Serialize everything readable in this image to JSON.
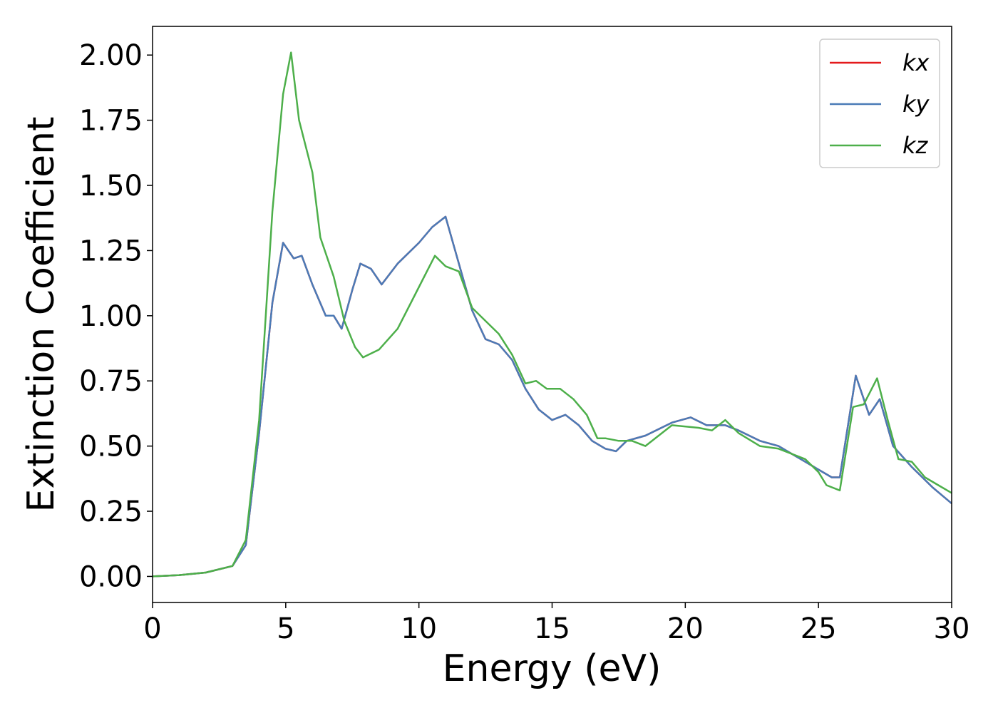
{
  "chart_data": {
    "type": "line",
    "xlabel": "Energy (eV)",
    "ylabel": "Extinction Coefficient",
    "xlim": [
      0,
      30
    ],
    "ylim": [
      -0.1,
      2.11
    ],
    "xticks": [
      0,
      5,
      10,
      15,
      20,
      25,
      30
    ],
    "yticks": [
      {
        "value": 0,
        "label": "0.00"
      },
      {
        "value": 0.25,
        "label": "0.25"
      },
      {
        "value": 0.5,
        "label": "0.50"
      },
      {
        "value": 0.75,
        "label": "0.75"
      },
      {
        "value": 1,
        "label": "1.00"
      },
      {
        "value": 1.25,
        "label": "1.25"
      },
      {
        "value": 1.5,
        "label": "1.50"
      },
      {
        "value": 1.75,
        "label": "1.75"
      },
      {
        "value": 2,
        "label": "2.00"
      }
    ],
    "legend": "upper right",
    "series": [
      {
        "name": "kx",
        "color": "#e41a1c",
        "x": [
          0,
          1,
          2,
          3,
          3.5,
          4,
          4.5,
          4.9,
          5.3,
          5.6,
          6,
          6.5,
          6.8,
          7.1,
          7.5,
          7.8,
          8.2,
          8.6,
          9.2,
          10,
          10.5,
          11,
          11.5,
          12,
          12.5,
          13,
          13.5,
          14,
          14.5,
          15,
          15.5,
          16,
          16.5,
          17,
          17.4,
          17.8,
          18.5,
          19.5,
          20.2,
          20.8,
          21.5,
          22,
          22.8,
          23.5,
          24.5,
          25.5,
          25.8,
          26.4,
          26.9,
          27.3,
          27.8,
          28.5,
          29.3,
          30
        ],
        "values": [
          0,
          0.005,
          0.015,
          0.04,
          0.12,
          0.55,
          1.05,
          1.28,
          1.22,
          1.23,
          1.12,
          1.0,
          1.0,
          0.95,
          1.1,
          1.2,
          1.18,
          1.12,
          1.2,
          1.28,
          1.34,
          1.38,
          1.2,
          1.02,
          0.91,
          0.89,
          0.83,
          0.72,
          0.64,
          0.6,
          0.62,
          0.58,
          0.52,
          0.49,
          0.48,
          0.52,
          0.54,
          0.59,
          0.61,
          0.58,
          0.58,
          0.56,
          0.52,
          0.5,
          0.44,
          0.38,
          0.38,
          0.77,
          0.62,
          0.68,
          0.5,
          0.42,
          0.34,
          0.28
        ]
      },
      {
        "name": "ky",
        "color": "#4a7bb7",
        "x": [
          0,
          1,
          2,
          3,
          3.5,
          4,
          4.5,
          4.9,
          5.3,
          5.6,
          6,
          6.5,
          6.8,
          7.1,
          7.5,
          7.8,
          8.2,
          8.6,
          9.2,
          10,
          10.5,
          11,
          11.5,
          12,
          12.5,
          13,
          13.5,
          14,
          14.5,
          15,
          15.5,
          16,
          16.5,
          17,
          17.4,
          17.8,
          18.5,
          19.5,
          20.2,
          20.8,
          21.5,
          22,
          22.8,
          23.5,
          24.5,
          25.5,
          25.8,
          26.4,
          26.9,
          27.3,
          27.8,
          28.5,
          29.3,
          30
        ],
        "values": [
          0,
          0.005,
          0.015,
          0.04,
          0.12,
          0.55,
          1.05,
          1.28,
          1.22,
          1.23,
          1.12,
          1.0,
          1.0,
          0.95,
          1.1,
          1.2,
          1.18,
          1.12,
          1.2,
          1.28,
          1.34,
          1.38,
          1.2,
          1.02,
          0.91,
          0.89,
          0.83,
          0.72,
          0.64,
          0.6,
          0.62,
          0.58,
          0.52,
          0.49,
          0.48,
          0.52,
          0.54,
          0.59,
          0.61,
          0.58,
          0.58,
          0.56,
          0.52,
          0.5,
          0.44,
          0.38,
          0.38,
          0.77,
          0.62,
          0.68,
          0.5,
          0.42,
          0.34,
          0.28
        ]
      },
      {
        "name": "kz",
        "color": "#4daf4a",
        "x": [
          0,
          1,
          2,
          3,
          3.5,
          4,
          4.5,
          4.9,
          5.2,
          5.5,
          6,
          6.3,
          6.8,
          7.2,
          7.6,
          7.9,
          8.5,
          9.2,
          9.7,
          10.2,
          10.6,
          11,
          11.5,
          12,
          12.5,
          13,
          13.5,
          14,
          14.4,
          14.8,
          15.3,
          15.8,
          16.3,
          16.7,
          17,
          17.5,
          18,
          18.5,
          19.5,
          20.5,
          21,
          21.5,
          22,
          22.8,
          23.5,
          24.5,
          25,
          25.3,
          25.8,
          26.3,
          26.7,
          27.2,
          27.6,
          28,
          28.5,
          29,
          29.5,
          30
        ],
        "values": [
          0,
          0.005,
          0.015,
          0.04,
          0.14,
          0.6,
          1.4,
          1.85,
          2.01,
          1.75,
          1.55,
          1.3,
          1.15,
          0.98,
          0.88,
          0.84,
          0.87,
          0.95,
          1.05,
          1.15,
          1.23,
          1.19,
          1.17,
          1.03,
          0.98,
          0.93,
          0.85,
          0.74,
          0.75,
          0.72,
          0.72,
          0.68,
          0.62,
          0.53,
          0.53,
          0.52,
          0.52,
          0.5,
          0.58,
          0.57,
          0.56,
          0.6,
          0.55,
          0.5,
          0.49,
          0.45,
          0.4,
          0.35,
          0.33,
          0.65,
          0.66,
          0.76,
          0.6,
          0.45,
          0.44,
          0.38,
          0.35,
          0.32
        ]
      }
    ]
  }
}
